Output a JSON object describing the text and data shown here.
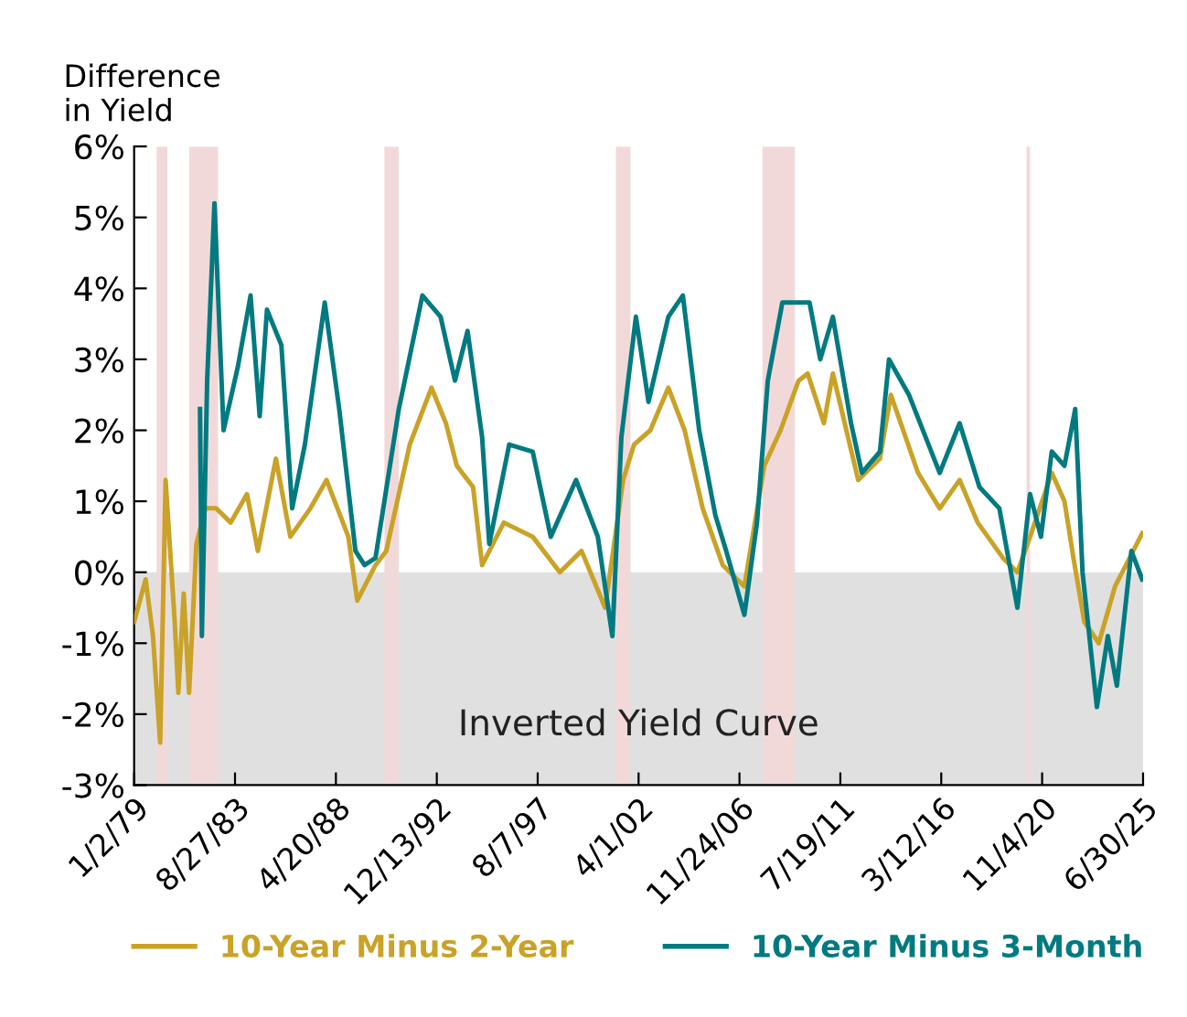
{
  "chart_data": {
    "type": "line",
    "ylabel": "Difference\nin Yield",
    "xlim": [
      "1979-01-02",
      "2025-06-30"
    ],
    "xticks": [
      {
        "value": "1979-01-02",
        "label": "1/2/79"
      },
      {
        "value": "1983-08-27",
        "label": "8/27/83"
      },
      {
        "value": "1988-04-20",
        "label": "4/20/88"
      },
      {
        "value": "1992-12-13",
        "label": "12/13/92"
      },
      {
        "value": "1997-08-07",
        "label": "8/7/97"
      },
      {
        "value": "2002-04-01",
        "label": "4/1/02"
      },
      {
        "value": "2006-11-24",
        "label": "11/24/06"
      },
      {
        "value": "2011-07-19",
        "label": "7/19/11"
      },
      {
        "value": "2016-03-12",
        "label": "3/12/16"
      },
      {
        "value": "2020-11-04",
        "label": "11/4/20"
      },
      {
        "value": "2025-06-30",
        "label": "6/30/25"
      }
    ],
    "ylim": [
      -3,
      6
    ],
    "yticks": [
      {
        "value": -3,
        "label": "-3%"
      },
      {
        "value": -2,
        "label": "-2%"
      },
      {
        "value": -1,
        "label": "-1%"
      },
      {
        "value": 0,
        "label": "0%"
      },
      {
        "value": 1,
        "label": "1%"
      },
      {
        "value": 2,
        "label": "2%"
      },
      {
        "value": 3,
        "label": "3%"
      },
      {
        "value": 4,
        "label": "4%"
      },
      {
        "value": 5,
        "label": "5%"
      },
      {
        "value": 6,
        "label": "6%"
      }
    ],
    "grid": false,
    "legend": "bottom",
    "marker": "none",
    "line_style": "solid",
    "bands": [
      {
        "axis": "y",
        "from": -3,
        "to": 0,
        "label": "Inverted Yield Curve",
        "color": "#e0e0e0"
      },
      {
        "axis": "x",
        "from": "1980-01",
        "to": "1980-07",
        "color": "#f2d9d9"
      },
      {
        "axis": "x",
        "from": "1981-07",
        "to": "1982-11",
        "color": "#f2d9d9"
      },
      {
        "axis": "x",
        "from": "1990-07",
        "to": "1991-03",
        "color": "#f2d9d9"
      },
      {
        "axis": "x",
        "from": "2001-03",
        "to": "2001-11",
        "color": "#f2d9d9"
      },
      {
        "axis": "x",
        "from": "2007-12",
        "to": "2009-06",
        "color": "#f2d9d9"
      },
      {
        "axis": "x",
        "from": "2020-02",
        "to": "2020-04",
        "color": "#f2d9d9"
      }
    ],
    "series": [
      {
        "name": "10-Year Minus 2-Year",
        "color": "#c9a227",
        "x": [
          "1979-01-02",
          "1979-07",
          "1979-11",
          "1980-03",
          "1980-06",
          "1980-11",
          "1981-01",
          "1981-04",
          "1981-07",
          "1981-11",
          "1982-04",
          "1982-10",
          "1983-06",
          "1984-03",
          "1984-09",
          "1985-07",
          "1986-03",
          "1987-02",
          "1987-11",
          "1988-11",
          "1989-04",
          "1990-02",
          "1990-08",
          "1991-09",
          "1992-09",
          "1993-05",
          "1993-11",
          "1994-08",
          "1995-01",
          "1996-01",
          "1997-05",
          "1998-08",
          "1999-08",
          "2000-09",
          "2001-07",
          "2002-01",
          "2002-10",
          "2003-08",
          "2004-05",
          "2005-03",
          "2006-02",
          "2007-02",
          "2008-01",
          "2008-10",
          "2009-08",
          "2010-01",
          "2010-10",
          "2011-03",
          "2012-05",
          "2013-05",
          "2013-11",
          "2015-02",
          "2016-02",
          "2017-01",
          "2017-11",
          "2019-01",
          "2019-09",
          "2020-04",
          "2021-04",
          "2021-11",
          "2022-04",
          "2022-10",
          "2023-06",
          "2024-03",
          "2024-09",
          "2025-06"
        ],
        "values": [
          -0.7,
          -0.1,
          -0.9,
          -2.4,
          1.3,
          -0.7,
          -1.7,
          -0.3,
          -1.7,
          0.4,
          0.9,
          0.9,
          0.7,
          1.1,
          0.3,
          1.6,
          0.5,
          0.9,
          1.3,
          0.5,
          -0.4,
          0.1,
          0.3,
          1.8,
          2.6,
          2.1,
          1.5,
          1.2,
          0.1,
          0.7,
          0.5,
          0.0,
          0.3,
          -0.5,
          1.3,
          1.8,
          2.0,
          2.6,
          2.0,
          0.9,
          0.1,
          -0.2,
          1.5,
          2.0,
          2.7,
          2.8,
          2.1,
          2.8,
          1.3,
          1.6,
          2.5,
          1.4,
          0.9,
          1.3,
          0.7,
          0.2,
          0.0,
          0.5,
          1.4,
          1.0,
          0.2,
          -0.7,
          -1.0,
          -0.2,
          0.1,
          0.55
        ]
      },
      {
        "name": "10-Year Minus 3-Month",
        "color": "#007a80",
        "x": [
          "1982-01",
          "1982-02",
          "1982-05",
          "1982-09",
          "1983-02",
          "1983-10",
          "1984-05",
          "1984-10",
          "1985-02",
          "1985-10",
          "1986-04",
          "1986-11",
          "1987-10",
          "1988-06",
          "1989-03",
          "1989-08",
          "1990-02",
          "1991-03",
          "1992-04",
          "1993-02",
          "1993-10",
          "1994-05",
          "1995-01",
          "1995-05",
          "1996-04",
          "1997-05",
          "1998-03",
          "1999-05",
          "2000-05",
          "2001-01",
          "2001-06",
          "2002-02",
          "2002-09",
          "2003-08",
          "2004-04",
          "2005-01",
          "2005-10",
          "2006-04",
          "2007-02",
          "2007-09",
          "2008-03",
          "2008-11",
          "2009-05",
          "2010-02",
          "2010-08",
          "2011-03",
          "2012-01",
          "2012-07",
          "2013-05",
          "2013-10",
          "2014-09",
          "2016-02",
          "2017-01",
          "2017-12",
          "2018-11",
          "2019-09",
          "2020-04",
          "2020-10",
          "2021-04",
          "2021-11",
          "2022-05",
          "2022-09",
          "2023-05",
          "2023-11",
          "2024-04",
          "2024-12",
          "2025-06"
        ],
        "values": [
          2.3,
          -0.9,
          2.7,
          5.2,
          2.0,
          2.9,
          3.9,
          2.2,
          3.7,
          3.2,
          0.9,
          1.8,
          3.8,
          2.3,
          0.3,
          0.1,
          0.2,
          2.3,
          3.9,
          3.6,
          2.7,
          3.4,
          1.9,
          0.4,
          1.8,
          1.7,
          0.5,
          1.3,
          0.5,
          -0.9,
          1.9,
          3.6,
          2.4,
          3.6,
          3.9,
          2.0,
          0.8,
          0.3,
          -0.6,
          0.7,
          2.7,
          3.8,
          3.8,
          3.8,
          3.0,
          3.6,
          2.1,
          1.4,
          1.7,
          3.0,
          2.5,
          1.4,
          2.1,
          1.2,
          0.9,
          -0.5,
          1.1,
          0.5,
          1.7,
          1.5,
          2.3,
          0.0,
          -1.9,
          -0.9,
          -1.6,
          0.3,
          -0.1
        ]
      }
    ]
  }
}
